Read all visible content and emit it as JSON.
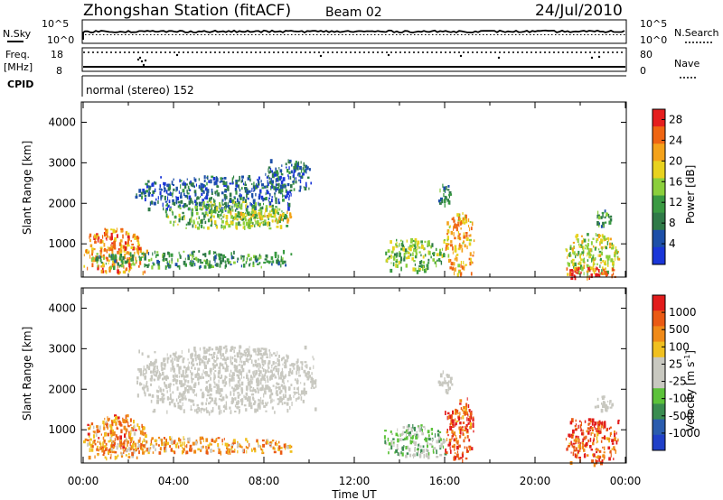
{
  "header": {
    "station_title": "Zhongshan Station (fitACF)",
    "beam": "Beam 02",
    "date": "24/Jul/2010"
  },
  "summary_panel": {
    "nsky_label": "N.Sky",
    "nsky_ticks": [
      "10^5",
      "10^0"
    ],
    "nsearch_label": "N.Search",
    "nsearch_ticks": [
      "10^5",
      "10^0"
    ],
    "freq_label_1": "Freq.",
    "freq_label_2": "[MHz]",
    "freq_ticks": [
      "18",
      "8"
    ],
    "nave_label": "Nave",
    "nave_ticks": [
      "80",
      "0"
    ],
    "cpid_label": "CPID",
    "cpid_text": "normal (stereo) 152"
  },
  "colors": {
    "power_scale": [
      "#1a36d8",
      "#1d4fa8",
      "#2f7a48",
      "#3a9a42",
      "#8bcf3c",
      "#e8d21e",
      "#f4a21a",
      "#ef6512",
      "#e51e1e"
    ],
    "velocity_scale": [
      "#2040c8",
      "#2a5cae",
      "#3a8c50",
      "#5cc23a",
      "#c8c8c0",
      "#c8c8c0",
      "#f0c020",
      "#f08a18",
      "#ea5a14",
      "#e21c1c"
    ],
    "velocity_background_fill": "#c8c8c0"
  },
  "chart_data": [
    {
      "type": "heatmap",
      "title": "",
      "xlabel": "Time UT",
      "ylabel": "Slant Range [km]",
      "x_ticks": [
        "00:00",
        "04:00",
        "08:00",
        "12:00",
        "16:00",
        "20:00",
        "00:00"
      ],
      "y_ticks": [
        "1000",
        "2000",
        "3000",
        "4000"
      ],
      "xlim_hours": [
        0,
        24
      ],
      "ylim_km": [
        180,
        4500
      ],
      "colorbar": {
        "label": "Power [dB]",
        "ticks": [
          "4",
          "8",
          "12",
          "16",
          "20",
          "24",
          "28"
        ],
        "range": [
          0,
          30
        ]
      },
      "regions": [
        {
          "t0": 0.0,
          "t1": 2.8,
          "r0": 300,
          "r1": 1400,
          "level": 0.75
        },
        {
          "t0": 0.2,
          "t1": 9.2,
          "r0": 450,
          "r1": 850,
          "level": 0.35
        },
        {
          "t0": 2.3,
          "t1": 9.2,
          "r0": 1850,
          "r1": 2700,
          "level": 0.2
        },
        {
          "t0": 3.6,
          "t1": 9.0,
          "r0": 1400,
          "r1": 2100,
          "level": 0.45
        },
        {
          "t0": 6.5,
          "t1": 9.3,
          "r0": 1500,
          "r1": 1900,
          "level": 0.6
        },
        {
          "t0": 8.0,
          "t1": 10.2,
          "r0": 2300,
          "r1": 3100,
          "level": 0.2
        },
        {
          "t0": 13.3,
          "t1": 16.0,
          "r0": 350,
          "r1": 1150,
          "level": 0.45
        },
        {
          "t0": 15.7,
          "t1": 16.3,
          "r0": 1900,
          "r1": 2500,
          "level": 0.3
        },
        {
          "t0": 16.0,
          "t1": 17.3,
          "r0": 250,
          "r1": 1800,
          "level": 0.7
        },
        {
          "t0": 21.3,
          "t1": 23.7,
          "r0": 250,
          "r1": 1300,
          "level": 0.55
        },
        {
          "t0": 21.3,
          "t1": 23.6,
          "r0": 180,
          "r1": 450,
          "level": 0.92
        },
        {
          "t0": 22.6,
          "t1": 23.4,
          "r0": 1450,
          "r1": 1850,
          "level": 0.3
        }
      ]
    },
    {
      "type": "heatmap",
      "title": "",
      "xlabel": "Time UT",
      "ylabel": "Slant Range [km]",
      "x_ticks": [
        "00:00",
        "04:00",
        "08:00",
        "12:00",
        "16:00",
        "20:00",
        "00:00"
      ],
      "y_ticks": [
        "1000",
        "2000",
        "3000",
        "4000"
      ],
      "xlim_hours": [
        0,
        24
      ],
      "ylim_km": [
        180,
        4500
      ],
      "colorbar": {
        "label": "Velocity [m s^-1]",
        "ticks": [
          "1000",
          "500",
          "100",
          "25",
          "-25",
          "-100",
          "-500",
          "-1000"
        ],
        "range": [
          -1200,
          1200
        ]
      },
      "regions": [
        {
          "t0": 0.0,
          "t1": 2.8,
          "r0": 300,
          "r1": 1400,
          "level": 0.75
        },
        {
          "t0": 0.2,
          "t1": 9.2,
          "r0": 450,
          "r1": 850,
          "level": 0.72
        },
        {
          "t0": 2.3,
          "t1": 10.3,
          "r0": 1450,
          "r1": 3100,
          "level": 0.5
        },
        {
          "t0": 13.3,
          "t1": 16.0,
          "r0": 350,
          "r1": 1150,
          "level": 0.4
        },
        {
          "t0": 15.7,
          "t1": 16.3,
          "r0": 1900,
          "r1": 2500,
          "level": 0.5
        },
        {
          "t0": 16.0,
          "t1": 17.3,
          "r0": 250,
          "r1": 1800,
          "level": 0.85
        },
        {
          "t0": 21.3,
          "t1": 23.7,
          "r0": 180,
          "r1": 1300,
          "level": 0.85
        },
        {
          "t0": 22.6,
          "t1": 23.4,
          "r0": 1450,
          "r1": 1850,
          "level": 0.5
        }
      ]
    }
  ]
}
